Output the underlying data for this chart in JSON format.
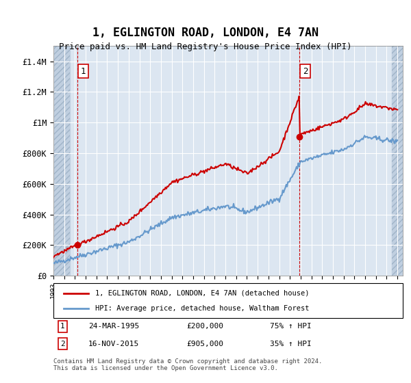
{
  "title": "1, EGLINGTON ROAD, LONDON, E4 7AN",
  "subtitle": "Price paid vs. HM Land Registry's House Price Index (HPI)",
  "sale1_date": "24-MAR-1995",
  "sale1_price": 200000,
  "sale1_pct": "75% ↑ HPI",
  "sale2_date": "16-NOV-2015",
  "sale2_price": 905000,
  "sale2_pct": "35% ↑ HPI",
  "legend1": "1, EGLINGTON ROAD, LONDON, E4 7AN (detached house)",
  "legend2": "HPI: Average price, detached house, Waltham Forest",
  "footnote": "Contains HM Land Registry data © Crown copyright and database right 2024.\nThis data is licensed under the Open Government Licence v3.0.",
  "hpi_color": "#6699cc",
  "price_color": "#cc0000",
  "ylim": [
    0,
    1500000
  ],
  "yticks": [
    0,
    200000,
    400000,
    600000,
    800000,
    1000000,
    1200000,
    1400000
  ],
  "ytick_labels": [
    "£0",
    "£200K",
    "£400K",
    "£600K",
    "£800K",
    "£1M",
    "£1.2M",
    "£1.4M"
  ],
  "sale1_x": 1995.23,
  "sale2_x": 2015.88,
  "background_color": "#dce6f1",
  "hatch_color": "#c0cfe0"
}
